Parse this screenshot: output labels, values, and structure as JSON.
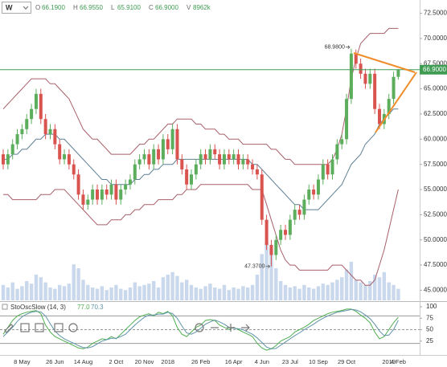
{
  "chart_data": {
    "type": "candlestick",
    "header": {
      "interval": "W",
      "fields": [
        {
          "name": "O",
          "value": "66.1900"
        },
        {
          "name": "H",
          "value": "66.9550"
        },
        {
          "name": "L",
          "value": "65.9100"
        },
        {
          "name": "C",
          "value": "66.9000"
        },
        {
          "name": "V",
          "value": "8962k"
        }
      ]
    },
    "categories": [
      null,
      null,
      null,
      null,
      "8 May",
      null,
      null,
      null,
      null,
      null,
      null,
      "26 Jun",
      null,
      null,
      null,
      null,
      null,
      "14 Aug",
      null,
      null,
      null,
      null,
      null,
      null,
      "2 Oct",
      null,
      null,
      null,
      null,
      null,
      "20 Nov",
      null,
      null,
      null,
      null,
      "2018",
      null,
      null,
      null,
      null,
      null,
      null,
      "26 Feb",
      null,
      null,
      null,
      null,
      null,
      null,
      "16 Apr",
      null,
      null,
      null,
      null,
      null,
      "4 Jun",
      null,
      null,
      null,
      null,
      null,
      "23 Jul",
      null,
      null,
      null,
      null,
      null,
      "10 Sep",
      null,
      null,
      null,
      null,
      null,
      "29 Oct",
      null,
      null,
      null,
      null,
      null,
      null,
      null,
      null,
      "2019",
      null,
      "4 Feb"
    ],
    "open": [
      58.5,
      57.5,
      58.5,
      59.5,
      60.5,
      61.0,
      62.0,
      63.0,
      64.5,
      62.0,
      60.5,
      61.0,
      59.5,
      58.0,
      58.5,
      57.5,
      56.5,
      54.5,
      53.5,
      54.0,
      55.0,
      54.0,
      55.0,
      54.5,
      55.5,
      54.0,
      55.0,
      55.5,
      56.0,
      57.5,
      58.0,
      58.5,
      57.5,
      59.0,
      58.0,
      60.0,
      59.0,
      61.0,
      58.0,
      57.0,
      55.5,
      56.5,
      57.5,
      58.5,
      58.0,
      59.0,
      58.5,
      57.5,
      58.5,
      58.0,
      58.5,
      57.5,
      58.0,
      57.5,
      57.0,
      56.5,
      52.0,
      49.5,
      48.5,
      50.0,
      51.0,
      50.5,
      52.0,
      53.0,
      52.5,
      54.0,
      55.0,
      54.5,
      56.0,
      57.5,
      56.5,
      58.0,
      59.5,
      60.0,
      64.0,
      68.5,
      67.5,
      66.5,
      65.5,
      66.5,
      63.0,
      61.5,
      62.5,
      64.0,
      66.19
    ],
    "high": [
      59.0,
      59.0,
      60.0,
      61.0,
      61.5,
      62.5,
      63.5,
      65.0,
      65.0,
      62.5,
      61.5,
      61.5,
      60.0,
      59.0,
      59.0,
      58.0,
      57.0,
      55.0,
      54.5,
      55.5,
      55.5,
      55.5,
      55.5,
      56.0,
      56.0,
      55.5,
      56.0,
      56.5,
      58.0,
      58.5,
      59.0,
      59.0,
      59.5,
      59.5,
      60.5,
      60.5,
      61.5,
      61.5,
      58.5,
      57.5,
      57.0,
      58.0,
      59.0,
      59.0,
      59.5,
      59.5,
      59.0,
      59.0,
      59.0,
      59.0,
      59.0,
      58.5,
      58.5,
      58.0,
      57.5,
      57.0,
      52.5,
      50.0,
      50.5,
      51.5,
      51.5,
      52.5,
      53.5,
      53.5,
      54.5,
      55.5,
      55.5,
      56.5,
      58.0,
      58.0,
      58.5,
      60.0,
      60.5,
      64.5,
      68.98,
      68.9,
      68.0,
      67.0,
      67.0,
      67.0,
      63.5,
      63.0,
      64.5,
      66.7,
      66.955
    ],
    "low": [
      57.0,
      57.0,
      58.0,
      59.0,
      60.0,
      60.5,
      61.5,
      62.5,
      61.5,
      60.0,
      60.0,
      59.0,
      57.5,
      57.5,
      57.0,
      56.0,
      54.0,
      53.0,
      53.0,
      53.5,
      53.5,
      53.5,
      54.0,
      54.0,
      53.5,
      53.5,
      54.5,
      55.0,
      55.5,
      57.0,
      57.5,
      57.0,
      57.0,
      57.5,
      57.5,
      58.5,
      58.5,
      57.5,
      56.5,
      55.0,
      55.0,
      56.0,
      57.0,
      57.5,
      57.5,
      58.0,
      57.0,
      57.0,
      57.5,
      57.5,
      57.0,
      57.0,
      57.0,
      56.5,
      56.0,
      51.5,
      49.0,
      47.37,
      48.0,
      49.5,
      50.0,
      50.0,
      51.5,
      52.0,
      52.0,
      53.5,
      54.0,
      54.0,
      55.5,
      56.0,
      56.0,
      57.5,
      59.0,
      59.5,
      63.5,
      67.0,
      66.0,
      65.0,
      65.0,
      62.5,
      61.0,
      61.0,
      62.0,
      63.5,
      65.91
    ],
    "close": [
      57.5,
      58.5,
      59.5,
      60.5,
      61.0,
      62.0,
      63.0,
      64.5,
      62.0,
      60.5,
      61.0,
      59.5,
      58.0,
      58.5,
      57.5,
      56.5,
      54.5,
      53.5,
      54.0,
      55.0,
      54.0,
      55.0,
      54.5,
      55.5,
      54.0,
      55.0,
      55.5,
      56.0,
      57.5,
      58.0,
      58.5,
      57.5,
      59.0,
      58.0,
      60.0,
      59.0,
      61.0,
      58.0,
      57.0,
      55.5,
      56.5,
      57.5,
      58.5,
      58.0,
      59.0,
      58.5,
      57.5,
      58.5,
      58.0,
      58.5,
      57.5,
      58.0,
      57.5,
      57.0,
      56.5,
      52.0,
      49.5,
      48.5,
      50.0,
      51.0,
      50.5,
      52.0,
      53.0,
      52.5,
      54.0,
      55.0,
      54.5,
      56.0,
      57.5,
      56.5,
      58.0,
      59.5,
      60.0,
      64.0,
      68.5,
      67.5,
      66.5,
      65.5,
      66.5,
      63.0,
      61.5,
      62.5,
      64.0,
      66.19,
      66.9
    ],
    "colors": {
      "up": "#5cae5c",
      "down": "#d9534f"
    },
    "ylim": [
      44.0,
      73.5
    ],
    "yticks": [
      {
        "value": 45,
        "label": "45.0000"
      },
      {
        "value": 47.5,
        "label": "47.5000"
      },
      {
        "value": 50,
        "label": "50.0000"
      },
      {
        "value": 52.5,
        "label": "52.5000"
      },
      {
        "value": 55,
        "label": "55.0000"
      },
      {
        "value": 57.5,
        "label": "57.5000"
      },
      {
        "value": 60,
        "label": "60.0000"
      },
      {
        "value": 62.5,
        "label": "62.5000"
      },
      {
        "value": 65,
        "label": "65.0000"
      },
      {
        "value": 67.5,
        "label": "67.5000"
      },
      {
        "value": 70,
        "label": "70.0000"
      },
      {
        "value": 72.5,
        "label": "72.5000"
      }
    ],
    "last_price": {
      "value": 66.9,
      "label": "66.9000",
      "color": "#3f9c52"
    },
    "annotations": [
      {
        "value": 68.98,
        "label": "68.9800",
        "of": "high"
      },
      {
        "value": 47.37,
        "label": "47.3700",
        "of": "low"
      }
    ],
    "bands": [
      {
        "color": "#a8606a",
        "values": [
          63.0,
          63.5,
          64.0,
          64.5,
          65.0,
          65.5,
          66.0,
          66.0,
          66.0,
          66.0,
          65.5,
          65.5,
          65.0,
          64.5,
          64.0,
          63.0,
          62.0,
          61.0,
          60.5,
          60.0,
          60.0,
          59.5,
          59.0,
          58.5,
          58.5,
          58.5,
          58.5,
          58.5,
          59.0,
          59.5,
          59.5,
          60.0,
          60.0,
          60.5,
          61.0,
          61.5,
          61.5,
          62.0,
          62.0,
          62.0,
          62.0,
          61.5,
          61.5,
          61.0,
          61.0,
          61.0,
          60.5,
          60.5,
          60.0,
          60.0,
          60.0,
          59.5,
          59.5,
          59.5,
          59.5,
          59.5,
          59.5,
          59.0,
          59.0,
          58.5,
          58.0,
          58.0,
          57.5,
          57.5,
          57.5,
          57.5,
          57.5,
          57.5,
          57.5,
          57.5,
          58.0,
          59.0,
          60.5,
          63.0,
          66.0,
          68.0,
          69.5,
          70.0,
          70.5,
          70.5,
          70.5,
          70.5,
          71.0,
          71.0,
          71.0
        ]
      },
      {
        "color": "#5e8096",
        "values": [
          58.0,
          58.0,
          58.5,
          58.5,
          59.0,
          59.0,
          59.5,
          60.0,
          60.0,
          60.5,
          60.5,
          60.5,
          60.0,
          60.0,
          59.5,
          59.0,
          58.5,
          58.0,
          57.5,
          57.0,
          56.5,
          56.0,
          56.0,
          55.5,
          55.5,
          55.5,
          55.5,
          55.5,
          56.0,
          56.0,
          56.5,
          56.5,
          57.0,
          57.0,
          57.5,
          57.5,
          57.5,
          58.0,
          58.0,
          58.0,
          58.0,
          58.0,
          58.0,
          58.0,
          58.0,
          58.0,
          58.0,
          58.0,
          58.0,
          58.0,
          58.0,
          58.0,
          58.0,
          57.5,
          57.5,
          57.0,
          56.5,
          56.0,
          55.5,
          55.0,
          54.5,
          54.0,
          53.5,
          53.5,
          53.0,
          53.0,
          53.0,
          53.0,
          53.5,
          54.0,
          54.5,
          55.0,
          55.5,
          56.5,
          57.5,
          58.0,
          58.5,
          59.5,
          60.0,
          60.5,
          61.5,
          62.0,
          62.5,
          63.0,
          63.0
        ]
      },
      {
        "color": "#a8606a",
        "values": [
          54.5,
          54.5,
          54.0,
          54.0,
          54.0,
          54.0,
          54.0,
          54.0,
          54.5,
          54.5,
          54.5,
          55.0,
          55.0,
          55.0,
          54.5,
          54.0,
          53.5,
          53.0,
          52.5,
          52.0,
          51.5,
          51.5,
          51.5,
          52.0,
          52.0,
          52.0,
          52.5,
          52.5,
          53.0,
          53.0,
          53.5,
          53.5,
          53.5,
          54.0,
          54.0,
          54.0,
          54.0,
          54.5,
          54.5,
          55.0,
          55.0,
          55.0,
          55.5,
          55.5,
          55.5,
          55.5,
          55.5,
          55.5,
          55.5,
          55.5,
          55.5,
          55.5,
          55.5,
          55.0,
          55.0,
          55.0,
          53.5,
          52.0,
          50.5,
          49.0,
          48.0,
          47.5,
          47.5,
          47.0,
          47.0,
          47.0,
          47.0,
          47.0,
          47.0,
          47.0,
          47.5,
          47.5,
          47.5,
          47.0,
          46.5,
          46.0,
          46.0,
          45.5,
          45.5,
          46.0,
          47.5,
          49.0,
          51.0,
          53.0,
          55.0
        ]
      }
    ],
    "volume": {
      "color": "#c9d8ec",
      "values": [
        12000,
        10000,
        14000,
        9000,
        11000,
        15000,
        13000,
        20000,
        18000,
        14000,
        10000,
        9000,
        12000,
        11000,
        13000,
        28000,
        25000,
        16000,
        12000,
        10000,
        9000,
        11000,
        8000,
        10000,
        12000,
        9000,
        8000,
        10000,
        14000,
        11000,
        12000,
        13000,
        15000,
        10000,
        18000,
        20000,
        22000,
        19000,
        14000,
        16000,
        12000,
        10000,
        9000,
        11000,
        13000,
        10000,
        9000,
        12000,
        8000,
        10000,
        9000,
        11000,
        10000,
        12000,
        20000,
        36000,
        45000,
        40000,
        25000,
        15000,
        12000,
        10000,
        11000,
        9000,
        12000,
        10000,
        9000,
        11000,
        13000,
        12000,
        14000,
        16000,
        18000,
        24000,
        30000,
        16000,
        14000,
        12000,
        15000,
        20000,
        18000,
        22000,
        14000,
        12000,
        8962
      ]
    },
    "oscillator": {
      "type": "line",
      "title": "StoOscSlow (14, 3)",
      "ylim": [
        0,
        100
      ],
      "yticks": [
        25,
        50,
        75,
        100
      ],
      "reference_lines": [
        20,
        50,
        80
      ],
      "series": [
        {
          "color": "#4fae4f",
          "last_label": "77.0",
          "values": [
            40,
            55,
            70,
            80,
            85,
            88,
            90,
            92,
            85,
            60,
            45,
            35,
            30,
            25,
            20,
            15,
            10,
            8,
            12,
            20,
            25,
            30,
            28,
            35,
            30,
            40,
            50,
            60,
            70,
            78,
            82,
            85,
            80,
            88,
            85,
            90,
            80,
            55,
            40,
            35,
            45,
            55,
            60,
            70,
            72,
            70,
            60,
            55,
            50,
            55,
            50,
            45,
            40,
            35,
            20,
            10,
            5,
            8,
            15,
            25,
            30,
            35,
            45,
            50,
            55,
            62,
            70,
            75,
            80,
            85,
            88,
            90,
            92,
            95,
            95,
            90,
            82,
            75,
            65,
            45,
            30,
            35,
            50,
            65,
            77.0
          ]
        },
        {
          "color": "#5f93a8",
          "last_label": "70.3",
          "values": [
            35,
            45,
            55,
            68,
            78,
            84,
            88,
            90,
            89,
            80,
            63,
            47,
            37,
            30,
            25,
            20,
            15,
            11,
            10,
            13,
            19,
            25,
            28,
            31,
            31,
            35,
            40,
            50,
            60,
            69,
            77,
            82,
            82,
            84,
            84,
            88,
            85,
            75,
            58,
            43,
            40,
            45,
            53,
            62,
            67,
            71,
            67,
            62,
            55,
            53,
            52,
            50,
            45,
            40,
            32,
            22,
            12,
            8,
            9,
            16,
            23,
            30,
            37,
            43,
            50,
            56,
            62,
            69,
            75,
            80,
            84,
            88,
            90,
            92,
            94,
            93,
            89,
            82,
            74,
            62,
            47,
            37,
            38,
            50,
            70.3
          ]
        }
      ]
    }
  }
}
